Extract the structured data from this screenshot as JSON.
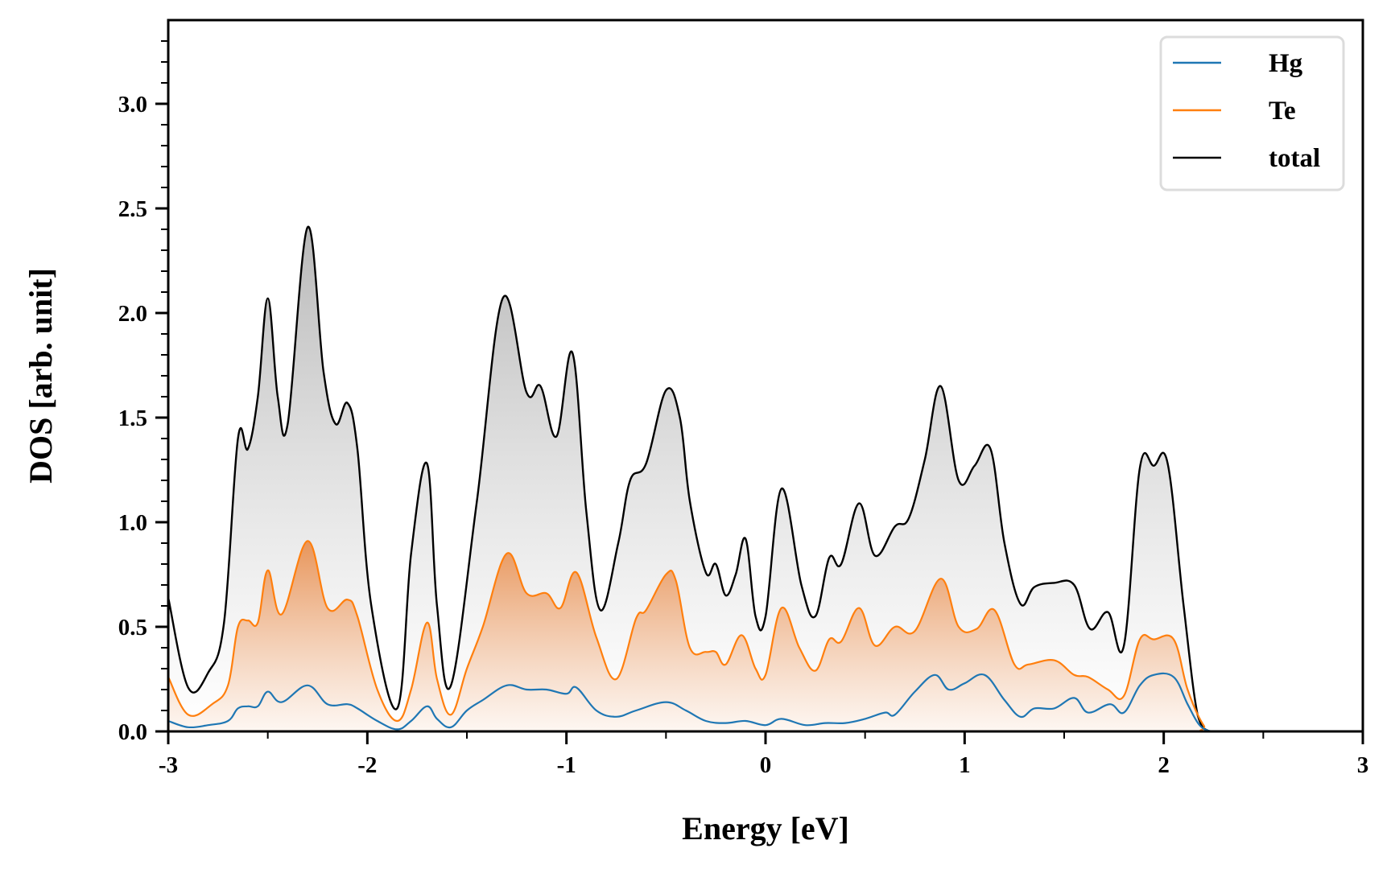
{
  "chart_data": {
    "type": "line",
    "title": "",
    "xlabel": "Energy [eV]",
    "ylabel": "DOS [arb. unit]",
    "xlim": [
      -3,
      3
    ],
    "ylim": [
      0,
      3.4
    ],
    "xticks": [
      -3,
      -2,
      -1,
      0,
      1,
      2,
      3
    ],
    "xtick_labels": [
      "-3",
      "-2",
      "-1",
      "0",
      "1",
      "2",
      "3"
    ],
    "xminor_step": 0.5,
    "yticks": [
      0.0,
      0.5,
      1.0,
      1.5,
      2.0,
      2.5,
      3.0
    ],
    "ytick_labels": [
      "0.0",
      "0.5",
      "1.0",
      "1.5",
      "2.0",
      "2.5",
      "3.0"
    ],
    "yminor_step": 0.1,
    "grid": false,
    "legend": {
      "position": "top-right",
      "entries": [
        "Hg",
        "Te",
        "total"
      ]
    },
    "series": [
      {
        "name": "Hg",
        "color": "#1f77b4",
        "fill": false,
        "x": [
          -3.0,
          -2.9,
          -2.8,
          -2.7,
          -2.65,
          -2.6,
          -2.55,
          -2.5,
          -2.43,
          -2.3,
          -2.2,
          -2.1,
          -2.05,
          -1.95,
          -1.85,
          -1.78,
          -1.7,
          -1.65,
          -1.58,
          -1.5,
          -1.42,
          -1.3,
          -1.2,
          -1.1,
          -1.0,
          -0.95,
          -0.85,
          -0.75,
          -0.65,
          -0.5,
          -0.4,
          -0.3,
          -0.2,
          -0.1,
          0.0,
          0.08,
          0.2,
          0.3,
          0.4,
          0.5,
          0.6,
          0.65,
          0.75,
          0.85,
          0.92,
          1.0,
          1.1,
          1.2,
          1.28,
          1.35,
          1.45,
          1.55,
          1.62,
          1.73,
          1.8,
          1.88,
          1.95,
          2.05,
          2.12,
          2.18,
          2.24,
          2.3,
          3.0
        ],
        "y": [
          0.05,
          0.02,
          0.03,
          0.05,
          0.11,
          0.12,
          0.12,
          0.19,
          0.14,
          0.22,
          0.13,
          0.13,
          0.11,
          0.05,
          0.01,
          0.05,
          0.12,
          0.06,
          0.02,
          0.1,
          0.15,
          0.22,
          0.2,
          0.2,
          0.18,
          0.21,
          0.1,
          0.07,
          0.1,
          0.14,
          0.1,
          0.05,
          0.04,
          0.05,
          0.03,
          0.06,
          0.03,
          0.04,
          0.04,
          0.06,
          0.09,
          0.08,
          0.19,
          0.27,
          0.2,
          0.23,
          0.27,
          0.15,
          0.07,
          0.11,
          0.11,
          0.16,
          0.09,
          0.13,
          0.09,
          0.22,
          0.27,
          0.26,
          0.13,
          0.03,
          0.0,
          0.0,
          0.0
        ]
      },
      {
        "name": "Te",
        "color": "#ff7f0e",
        "fill": true,
        "x": [
          -3.0,
          -2.9,
          -2.78,
          -2.7,
          -2.65,
          -2.6,
          -2.55,
          -2.5,
          -2.43,
          -2.3,
          -2.2,
          -2.1,
          -2.05,
          -1.95,
          -1.85,
          -1.78,
          -1.7,
          -1.65,
          -1.58,
          -1.5,
          -1.42,
          -1.3,
          -1.2,
          -1.1,
          -1.03,
          -0.95,
          -0.85,
          -0.75,
          -0.65,
          -0.6,
          -0.5,
          -0.45,
          -0.38,
          -0.3,
          -0.25,
          -0.2,
          -0.12,
          -0.05,
          0.0,
          0.08,
          0.17,
          0.25,
          0.32,
          0.38,
          0.47,
          0.55,
          0.65,
          0.75,
          0.88,
          0.97,
          1.06,
          1.15,
          1.25,
          1.32,
          1.45,
          1.55,
          1.62,
          1.72,
          1.8,
          1.88,
          1.95,
          2.05,
          2.12,
          2.2,
          2.26,
          3.0
        ],
        "y": [
          0.26,
          0.08,
          0.13,
          0.22,
          0.5,
          0.53,
          0.52,
          0.77,
          0.56,
          0.91,
          0.59,
          0.63,
          0.55,
          0.2,
          0.05,
          0.2,
          0.52,
          0.25,
          0.08,
          0.3,
          0.5,
          0.85,
          0.66,
          0.66,
          0.59,
          0.76,
          0.45,
          0.25,
          0.54,
          0.58,
          0.75,
          0.72,
          0.4,
          0.38,
          0.38,
          0.32,
          0.46,
          0.3,
          0.27,
          0.59,
          0.4,
          0.29,
          0.44,
          0.43,
          0.59,
          0.41,
          0.5,
          0.48,
          0.73,
          0.5,
          0.49,
          0.58,
          0.32,
          0.32,
          0.34,
          0.27,
          0.26,
          0.2,
          0.17,
          0.44,
          0.44,
          0.44,
          0.2,
          0.03,
          0.0,
          0.0
        ]
      },
      {
        "name": "total",
        "color": "#000000",
        "fill": true,
        "x": [
          -3.0,
          -2.9,
          -2.8,
          -2.72,
          -2.65,
          -2.6,
          -2.55,
          -2.5,
          -2.45,
          -2.4,
          -2.3,
          -2.22,
          -2.16,
          -2.1,
          -2.05,
          -1.98,
          -1.85,
          -1.78,
          -1.7,
          -1.65,
          -1.58,
          -1.45,
          -1.32,
          -1.2,
          -1.13,
          -1.05,
          -0.97,
          -0.9,
          -0.83,
          -0.74,
          -0.68,
          -0.6,
          -0.5,
          -0.43,
          -0.38,
          -0.3,
          -0.25,
          -0.2,
          -0.15,
          -0.1,
          -0.05,
          0.0,
          0.08,
          0.18,
          0.25,
          0.32,
          0.38,
          0.47,
          0.55,
          0.65,
          0.72,
          0.8,
          0.88,
          0.97,
          1.05,
          1.13,
          1.2,
          1.28,
          1.35,
          1.45,
          1.55,
          1.63,
          1.72,
          1.8,
          1.88,
          1.95,
          2.02,
          2.1,
          2.17,
          2.23,
          2.3,
          3.0
        ],
        "y": [
          0.64,
          0.21,
          0.28,
          0.52,
          1.4,
          1.35,
          1.6,
          2.07,
          1.6,
          1.47,
          2.41,
          1.72,
          1.47,
          1.57,
          1.35,
          0.6,
          0.11,
          0.85,
          1.28,
          0.6,
          0.22,
          1.1,
          2.07,
          1.62,
          1.65,
          1.41,
          1.81,
          1.05,
          0.58,
          0.9,
          1.2,
          1.28,
          1.63,
          1.5,
          1.1,
          0.76,
          0.8,
          0.65,
          0.75,
          0.92,
          0.55,
          0.55,
          1.16,
          0.7,
          0.55,
          0.83,
          0.8,
          1.09,
          0.84,
          0.98,
          1.02,
          1.3,
          1.65,
          1.2,
          1.27,
          1.35,
          0.9,
          0.61,
          0.69,
          0.71,
          0.7,
          0.49,
          0.57,
          0.41,
          1.26,
          1.27,
          1.28,
          0.6,
          0.08,
          0.0,
          0.0,
          0.0
        ]
      }
    ]
  }
}
